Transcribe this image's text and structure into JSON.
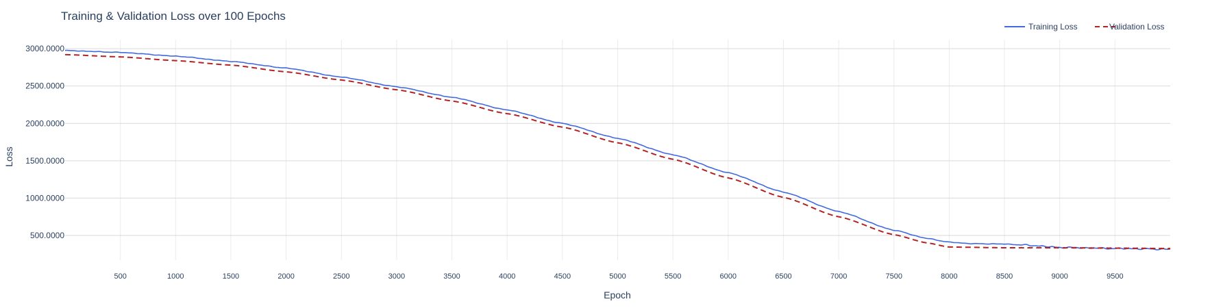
{
  "chart_data": {
    "type": "line",
    "title": "Training & Validation Loss over 100 Epochs",
    "xlabel": "Epoch",
    "ylabel": "Loss",
    "xlim": [
      0,
      10000
    ],
    "ylim": [
      170,
      3120
    ],
    "x_ticks": [
      500,
      1000,
      1500,
      2000,
      2500,
      3000,
      3500,
      4000,
      4500,
      5000,
      5500,
      6000,
      6500,
      7000,
      7500,
      8000,
      8500,
      9000,
      9500
    ],
    "y_ticks": [
      500,
      1000,
      1500,
      2000,
      2500,
      3000
    ],
    "y_tick_labels": [
      "500.0000",
      "1000.0000",
      "1500.0000",
      "2000.0000",
      "2500.0000",
      "3000.0000"
    ],
    "grid": true,
    "legend_position": "top-right",
    "series": [
      {
        "name": "Training Loss",
        "color": "#4169e1",
        "dash": "solid",
        "x": [
          0,
          500,
          1000,
          1500,
          2000,
          2500,
          3000,
          3500,
          4000,
          4500,
          5000,
          5500,
          6000,
          6500,
          7000,
          7500,
          7800,
          8000,
          8200,
          8500,
          8700,
          9000,
          9500,
          10000
        ],
        "values": [
          2975,
          2950,
          2900,
          2830,
          2740,
          2620,
          2490,
          2350,
          2180,
          2000,
          1800,
          1580,
          1340,
          1080,
          820,
          570,
          460,
          410,
          390,
          385,
          370,
          340,
          325,
          315
        ]
      },
      {
        "name": "Validation Loss",
        "color": "#b22222",
        "dash": "dashed",
        "x": [
          0,
          500,
          1000,
          1500,
          2000,
          2500,
          3000,
          3500,
          4000,
          4500,
          5000,
          5500,
          6000,
          6500,
          7000,
          7500,
          7800,
          8000,
          8500,
          9000,
          9500,
          10000
        ],
        "values": [
          2920,
          2890,
          2840,
          2780,
          2690,
          2580,
          2450,
          2300,
          2130,
          1950,
          1740,
          1520,
          1270,
          1010,
          750,
          510,
          400,
          345,
          335,
          335,
          330,
          325
        ]
      }
    ]
  }
}
